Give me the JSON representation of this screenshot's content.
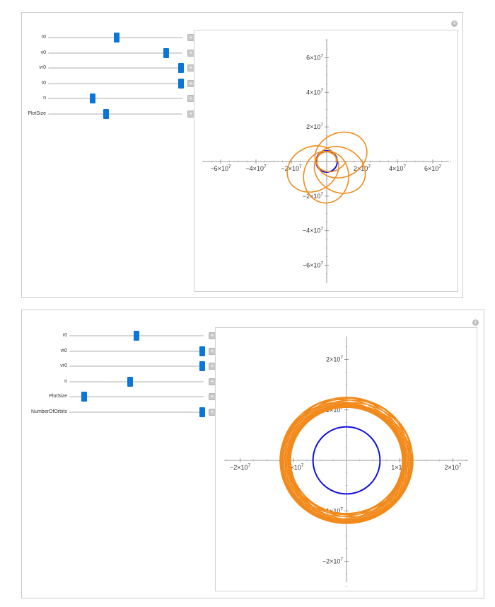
{
  "panel1": {
    "expand_icon": "+",
    "controls": [
      {
        "label": "r0",
        "level": 0.51
      },
      {
        "label": "v0",
        "level": 0.88
      },
      {
        "label": "vr0",
        "level": 0.99
      },
      {
        "label": "t0",
        "level": 0.99
      },
      {
        "label": "n",
        "level": 0.33
      },
      {
        "label": "PlotSize",
        "level": 0.43
      }
    ],
    "add_icon": "+"
  },
  "panel2": {
    "expand_icon": "+",
    "controls": [
      {
        "label": "r0",
        "level": 0.5
      },
      {
        "label": "vt0",
        "level": 0.99
      },
      {
        "label": "vr0",
        "level": 0.99
      },
      {
        "label": "n",
        "level": 0.45
      },
      {
        "label": "PlotSize",
        "level": 0.11
      },
      {
        "label": "NumberOfOrbits",
        "level": 0.99
      }
    ],
    "add_icon": "+"
  },
  "chart_data": [
    {
      "type": "line",
      "xlim": [
        -70000000,
        70000000
      ],
      "ylim": [
        -70000000,
        70000000
      ],
      "x_ticks": [
        {
          "value": -60000000,
          "label": "−6×10",
          "exp": "7"
        },
        {
          "value": -40000000,
          "label": "−4×10",
          "exp": "7"
        },
        {
          "value": -20000000,
          "label": "−2×10",
          "exp": "7"
        },
        {
          "value": 20000000,
          "label": "2×10",
          "exp": "7"
        },
        {
          "value": 40000000,
          "label": "4×10",
          "exp": "7"
        },
        {
          "value": 60000000,
          "label": "6×10",
          "exp": "7"
        }
      ],
      "y_ticks": [
        {
          "value": 60000000,
          "label": "6×10",
          "exp": "7"
        },
        {
          "value": 40000000,
          "label": "4×10",
          "exp": "7"
        },
        {
          "value": 20000000,
          "label": "2×10",
          "exp": "7"
        },
        {
          "value": -20000000,
          "label": "−2×10",
          "exp": "7"
        },
        {
          "value": -40000000,
          "label": "−4×10",
          "exp": "7"
        },
        {
          "value": -60000000,
          "label": "−6×10",
          "exp": "7"
        }
      ],
      "series": [
        {
          "kind": "circle",
          "center": [
            0,
            0
          ],
          "radius": 6000000,
          "color": "#1010e0"
        },
        {
          "kind": "orbit",
          "color": "#f28a1b",
          "r_min": 5500000,
          "r_max": 24000000,
          "turns": 5,
          "precession": 0.86
        }
      ]
    },
    {
      "type": "line",
      "xlim": [
        -23000000,
        23000000
      ],
      "ylim": [
        -24000000,
        24000000
      ],
      "x_ticks": [
        {
          "value": -20000000,
          "label": "−2×10",
          "exp": "7"
        },
        {
          "value": -10000000,
          "label": "−1×10",
          "exp": "7"
        },
        {
          "value": 10000000,
          "label": "1×10",
          "exp": "7"
        },
        {
          "value": 20000000,
          "label": "2×10",
          "exp": "7"
        }
      ],
      "y_ticks": [
        {
          "value": 20000000,
          "label": "2×10",
          "exp": "7"
        },
        {
          "value": 10000000,
          "label": "1×10",
          "exp": "7"
        },
        {
          "value": -10000000,
          "label": "−1×10",
          "exp": "7"
        },
        {
          "value": -20000000,
          "label": "−2×10",
          "exp": "7"
        }
      ],
      "series": [
        {
          "kind": "circle",
          "center": [
            0,
            0
          ],
          "radius": 6300000,
          "color": "#1010e0"
        },
        {
          "kind": "orbit",
          "color": "#f28a1b",
          "r_min": 10500000,
          "r_max": 12500000,
          "turns": 18,
          "precession": 0.92
        }
      ]
    }
  ]
}
